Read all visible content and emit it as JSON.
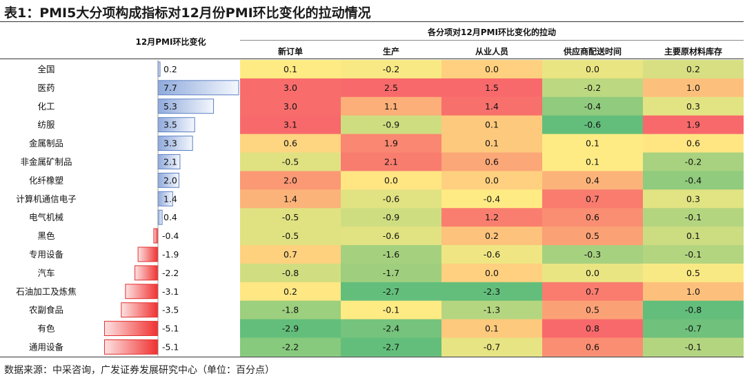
{
  "title": "表1：PMI5大分项构成指标对12月份PMI环比变化的拉动情况",
  "headers": {
    "mom_change": "12月PMI环比变化",
    "group": "各分项对12月PMI环比变化的拉动",
    "industries": ""
  },
  "source": "数据来源：中采咨询，广发证券发展研究中心（单位：百分点）",
  "colors": {
    "bar_positive": "#8faadc",
    "bar_negative": "#f03030",
    "scale_low": "#63be7b",
    "scale_mid": "#ffeb84",
    "scale_high": "#f8696b"
  },
  "chart_data": {
    "type": "table",
    "categories": [
      "全国",
      "医药",
      "化工",
      "纺服",
      "金属制品",
      "非金属矿制品",
      "化纤橡塑",
      "计算机通信电子",
      "电气机械",
      "黑色",
      "专用设备",
      "汽车",
      "石油加工及炼焦",
      "农副食品",
      "有色",
      "通用设备"
    ],
    "mom_change": [
      0.2,
      7.7,
      5.3,
      3.5,
      3.3,
      2.1,
      2.0,
      1.4,
      0.4,
      -0.4,
      -1.9,
      -2.2,
      -3.1,
      -3.5,
      -5.1,
      -5.1
    ],
    "series": [
      {
        "name": "新订单",
        "values": [
          0.1,
          3.0,
          3.0,
          3.1,
          0.6,
          -0.5,
          2.0,
          1.4,
          -0.5,
          -0.5,
          0.7,
          -0.8,
          0.2,
          -1.8,
          -2.9,
          -2.2
        ]
      },
      {
        "name": "生产",
        "values": [
          -0.2,
          2.5,
          1.1,
          -0.9,
          1.9,
          2.1,
          0.0,
          -0.6,
          -0.9,
          -0.6,
          -1.6,
          -1.7,
          -2.7,
          -0.1,
          -2.4,
          -2.7
        ]
      },
      {
        "name": "从业人员",
        "values": [
          0.0,
          1.5,
          1.4,
          0.1,
          0.1,
          0.6,
          0.0,
          -0.4,
          1.2,
          0.2,
          -0.6,
          0.0,
          -2.3,
          -1.3,
          0.1,
          -0.7
        ]
      },
      {
        "name": "供应商配送时间",
        "values": [
          0.0,
          -0.2,
          -0.4,
          -0.6,
          0.1,
          0.1,
          0.4,
          0.7,
          0.6,
          0.5,
          -0.3,
          0.0,
          0.7,
          0.5,
          0.8,
          0.6
        ]
      },
      {
        "name": "主要原材料库存",
        "values": [
          0.2,
          1.0,
          0.3,
          1.9,
          0.6,
          -0.2,
          -0.4,
          0.3,
          -0.1,
          0.1,
          -0.1,
          0.5,
          1.0,
          -0.8,
          -0.7,
          -0.1
        ]
      }
    ]
  }
}
